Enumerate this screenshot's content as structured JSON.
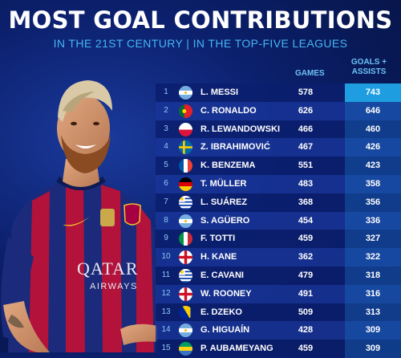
{
  "title": "MOST GOAL CONTRIBUTIONS",
  "subtitle": "IN THE 21ST CENTURY | IN THE TOP-FIVE LEAGUES",
  "headers": {
    "games": "GAMES",
    "goals_assists_line1": "GOALS +",
    "goals_assists_line2": "ASSISTS"
  },
  "sponsor": {
    "line1": "QATAR",
    "line2": "AIRWAYS"
  },
  "rows": [
    {
      "rank": "1",
      "name": "L. MESSI",
      "games": "578",
      "ga": "743",
      "flag": "argentina"
    },
    {
      "rank": "2",
      "name": "C. RONALDO",
      "games": "626",
      "ga": "646",
      "flag": "portugal"
    },
    {
      "rank": "3",
      "name": "R. LEWANDOWSKI",
      "games": "466",
      "ga": "460",
      "flag": "poland"
    },
    {
      "rank": "4",
      "name": "Z. IBRAHIMOVIĆ",
      "games": "467",
      "ga": "426",
      "flag": "sweden"
    },
    {
      "rank": "5",
      "name": "K. BENZEMA",
      "games": "551",
      "ga": "423",
      "flag": "france"
    },
    {
      "rank": "6",
      "name": "T. MÜLLER",
      "games": "483",
      "ga": "358",
      "flag": "germany"
    },
    {
      "rank": "7",
      "name": "L. SUÁREZ",
      "games": "368",
      "ga": "356",
      "flag": "uruguay"
    },
    {
      "rank": "8",
      "name": "S. AGÜERO",
      "games": "454",
      "ga": "336",
      "flag": "argentina"
    },
    {
      "rank": "9",
      "name": "F. TOTTI",
      "games": "459",
      "ga": "327",
      "flag": "italy"
    },
    {
      "rank": "10",
      "name": "H. KANE",
      "games": "362",
      "ga": "322",
      "flag": "england"
    },
    {
      "rank": "11",
      "name": "E. CAVANI",
      "games": "479",
      "ga": "318",
      "flag": "uruguay"
    },
    {
      "rank": "12",
      "name": "W. ROONEY",
      "games": "491",
      "ga": "316",
      "flag": "england"
    },
    {
      "rank": "13",
      "name": "E. DZEKO",
      "games": "509",
      "ga": "313",
      "flag": "bosnia"
    },
    {
      "rank": "14",
      "name": "G. HIGUAÍN",
      "games": "428",
      "ga": "309",
      "flag": "argentina"
    },
    {
      "rank": "15",
      "name": "P. AUBAMEYANG",
      "games": "459",
      "ga": "309",
      "flag": "gabon"
    }
  ]
}
